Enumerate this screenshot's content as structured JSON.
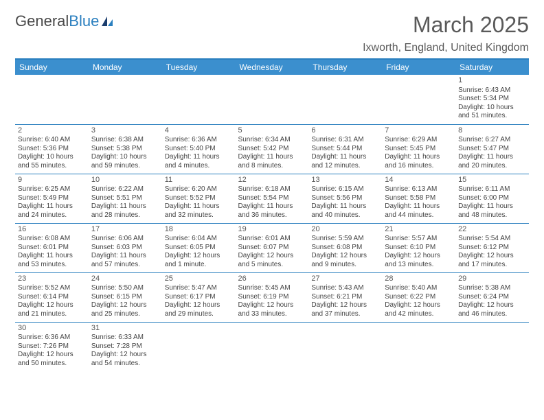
{
  "logo": {
    "text_a": "General",
    "text_b": "Blue"
  },
  "title": "March 2025",
  "location": "Ixworth, England, United Kingdom",
  "colors": {
    "header_bg": "#3b8fce",
    "rule": "#2a7fbf",
    "shade": "#eaeaea",
    "text": "#444444"
  },
  "day_headers": [
    "Sunday",
    "Monday",
    "Tuesday",
    "Wednesday",
    "Thursday",
    "Friday",
    "Saturday"
  ],
  "weeks": [
    [
      null,
      null,
      null,
      null,
      null,
      null,
      {
        "n": "1",
        "sr": "Sunrise: 6:43 AM",
        "ss": "Sunset: 5:34 PM",
        "dl": "Daylight: 10 hours and 51 minutes."
      }
    ],
    [
      {
        "n": "2",
        "sr": "Sunrise: 6:40 AM",
        "ss": "Sunset: 5:36 PM",
        "dl": "Daylight: 10 hours and 55 minutes."
      },
      {
        "n": "3",
        "sr": "Sunrise: 6:38 AM",
        "ss": "Sunset: 5:38 PM",
        "dl": "Daylight: 10 hours and 59 minutes."
      },
      {
        "n": "4",
        "sr": "Sunrise: 6:36 AM",
        "ss": "Sunset: 5:40 PM",
        "dl": "Daylight: 11 hours and 4 minutes."
      },
      {
        "n": "5",
        "sr": "Sunrise: 6:34 AM",
        "ss": "Sunset: 5:42 PM",
        "dl": "Daylight: 11 hours and 8 minutes."
      },
      {
        "n": "6",
        "sr": "Sunrise: 6:31 AM",
        "ss": "Sunset: 5:44 PM",
        "dl": "Daylight: 11 hours and 12 minutes."
      },
      {
        "n": "7",
        "sr": "Sunrise: 6:29 AM",
        "ss": "Sunset: 5:45 PM",
        "dl": "Daylight: 11 hours and 16 minutes."
      },
      {
        "n": "8",
        "sr": "Sunrise: 6:27 AM",
        "ss": "Sunset: 5:47 PM",
        "dl": "Daylight: 11 hours and 20 minutes."
      }
    ],
    [
      {
        "n": "9",
        "sr": "Sunrise: 6:25 AM",
        "ss": "Sunset: 5:49 PM",
        "dl": "Daylight: 11 hours and 24 minutes."
      },
      {
        "n": "10",
        "sr": "Sunrise: 6:22 AM",
        "ss": "Sunset: 5:51 PM",
        "dl": "Daylight: 11 hours and 28 minutes."
      },
      {
        "n": "11",
        "sr": "Sunrise: 6:20 AM",
        "ss": "Sunset: 5:52 PM",
        "dl": "Daylight: 11 hours and 32 minutes."
      },
      {
        "n": "12",
        "sr": "Sunrise: 6:18 AM",
        "ss": "Sunset: 5:54 PM",
        "dl": "Daylight: 11 hours and 36 minutes."
      },
      {
        "n": "13",
        "sr": "Sunrise: 6:15 AM",
        "ss": "Sunset: 5:56 PM",
        "dl": "Daylight: 11 hours and 40 minutes."
      },
      {
        "n": "14",
        "sr": "Sunrise: 6:13 AM",
        "ss": "Sunset: 5:58 PM",
        "dl": "Daylight: 11 hours and 44 minutes."
      },
      {
        "n": "15",
        "sr": "Sunrise: 6:11 AM",
        "ss": "Sunset: 6:00 PM",
        "dl": "Daylight: 11 hours and 48 minutes."
      }
    ],
    [
      {
        "n": "16",
        "sr": "Sunrise: 6:08 AM",
        "ss": "Sunset: 6:01 PM",
        "dl": "Daylight: 11 hours and 53 minutes."
      },
      {
        "n": "17",
        "sr": "Sunrise: 6:06 AM",
        "ss": "Sunset: 6:03 PM",
        "dl": "Daylight: 11 hours and 57 minutes."
      },
      {
        "n": "18",
        "sr": "Sunrise: 6:04 AM",
        "ss": "Sunset: 6:05 PM",
        "dl": "Daylight: 12 hours and 1 minute."
      },
      {
        "n": "19",
        "sr": "Sunrise: 6:01 AM",
        "ss": "Sunset: 6:07 PM",
        "dl": "Daylight: 12 hours and 5 minutes."
      },
      {
        "n": "20",
        "sr": "Sunrise: 5:59 AM",
        "ss": "Sunset: 6:08 PM",
        "dl": "Daylight: 12 hours and 9 minutes."
      },
      {
        "n": "21",
        "sr": "Sunrise: 5:57 AM",
        "ss": "Sunset: 6:10 PM",
        "dl": "Daylight: 12 hours and 13 minutes."
      },
      {
        "n": "22",
        "sr": "Sunrise: 5:54 AM",
        "ss": "Sunset: 6:12 PM",
        "dl": "Daylight: 12 hours and 17 minutes."
      }
    ],
    [
      {
        "n": "23",
        "sr": "Sunrise: 5:52 AM",
        "ss": "Sunset: 6:14 PM",
        "dl": "Daylight: 12 hours and 21 minutes."
      },
      {
        "n": "24",
        "sr": "Sunrise: 5:50 AM",
        "ss": "Sunset: 6:15 PM",
        "dl": "Daylight: 12 hours and 25 minutes."
      },
      {
        "n": "25",
        "sr": "Sunrise: 5:47 AM",
        "ss": "Sunset: 6:17 PM",
        "dl": "Daylight: 12 hours and 29 minutes."
      },
      {
        "n": "26",
        "sr": "Sunrise: 5:45 AM",
        "ss": "Sunset: 6:19 PM",
        "dl": "Daylight: 12 hours and 33 minutes."
      },
      {
        "n": "27",
        "sr": "Sunrise: 5:43 AM",
        "ss": "Sunset: 6:21 PM",
        "dl": "Daylight: 12 hours and 37 minutes."
      },
      {
        "n": "28",
        "sr": "Sunrise: 5:40 AM",
        "ss": "Sunset: 6:22 PM",
        "dl": "Daylight: 12 hours and 42 minutes."
      },
      {
        "n": "29",
        "sr": "Sunrise: 5:38 AM",
        "ss": "Sunset: 6:24 PM",
        "dl": "Daylight: 12 hours and 46 minutes."
      }
    ],
    [
      {
        "n": "30",
        "sr": "Sunrise: 6:36 AM",
        "ss": "Sunset: 7:26 PM",
        "dl": "Daylight: 12 hours and 50 minutes."
      },
      {
        "n": "31",
        "sr": "Sunrise: 6:33 AM",
        "ss": "Sunset: 7:28 PM",
        "dl": "Daylight: 12 hours and 54 minutes."
      },
      null,
      null,
      null,
      null,
      null
    ]
  ]
}
